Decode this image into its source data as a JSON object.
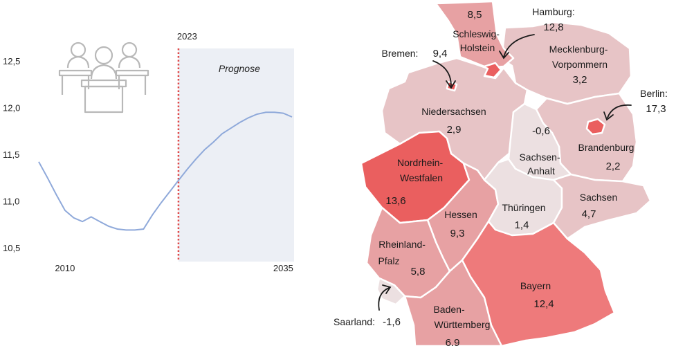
{
  "chart_data": [
    {
      "type": "line",
      "ylim": [
        10.5,
        12.5
      ],
      "yticks": [
        "10,5",
        "11,0",
        "11,5",
        "12,0",
        "12,5"
      ],
      "xtick_labels": [
        "2010",
        "2035"
      ],
      "marker": {
        "year": "2023",
        "label": "2023"
      },
      "forecast_label": "Prognose",
      "series": [
        {
          "x": [
            2007,
            2008,
            2009,
            2010,
            2011,
            2012,
            2013,
            2014,
            2015,
            2016,
            2017,
            2018,
            2019,
            2020,
            2021,
            2022,
            2023,
            2024,
            2025,
            2026,
            2027,
            2028,
            2029,
            2030,
            2031,
            2032,
            2033,
            2034,
            2035,
            2036
          ],
          "values": [
            11.42,
            11.25,
            11.07,
            10.9,
            10.82,
            10.78,
            10.83,
            10.78,
            10.73,
            10.7,
            10.69,
            10.69,
            10.7,
            10.85,
            10.98,
            11.1,
            11.22,
            11.34,
            11.45,
            11.55,
            11.63,
            11.72,
            11.78,
            11.84,
            11.89,
            11.93,
            11.95,
            11.95,
            11.94,
            11.9
          ]
        }
      ],
      "colors": {
        "line": "#8fa9da",
        "marker": "#e04848",
        "forecast_bg": "#eceff5"
      }
    },
    {
      "type": "map",
      "regions": [
        {
          "name": "Schleswig-Holstein",
          "label": "Schleswig-\nHolstein",
          "value": "8,5"
        },
        {
          "name": "Hamburg",
          "label": "Hamburg:",
          "value": "12,8"
        },
        {
          "name": "Bremen",
          "label": "Bremen:",
          "value": "9,4"
        },
        {
          "name": "Mecklenburg-Vorpommern",
          "label": "Mecklenburg-\nVorpommern",
          "value": "3,2"
        },
        {
          "name": "Niedersachsen",
          "label": "Niedersachsen",
          "value": "2,9"
        },
        {
          "name": "Berlin",
          "label": "Berlin:",
          "value": "17,3"
        },
        {
          "name": "Brandenburg",
          "label": "Brandenburg",
          "value": "2,2"
        },
        {
          "name": "Sachsen-Anhalt",
          "label": "Sachsen-\nAnhalt",
          "value": "-0,6"
        },
        {
          "name": "Nordrhein-Westfalen",
          "label": "Nordrhein-\nWestfalen",
          "value": "13,6"
        },
        {
          "name": "Hessen",
          "label": "Hessen",
          "value": "9,3"
        },
        {
          "name": "Thüringen",
          "label": "Thüringen",
          "value": "1,4"
        },
        {
          "name": "Sachsen",
          "label": "Sachsen",
          "value": "4,7"
        },
        {
          "name": "Rheinland-Pfalz",
          "label": "Rheinland-\nPfalz",
          "value": "5,8"
        },
        {
          "name": "Saarland",
          "label": "Saarland:",
          "value": "-1,6"
        },
        {
          "name": "Bayern",
          "label": "Bayern",
          "value": "12,4"
        },
        {
          "name": "Baden-Württemberg",
          "label": "Baden-\nWürttemberg",
          "value": "6,9"
        }
      ],
      "colors": {
        "low": "#ece0e1",
        "mid_low": "#e7c4c6",
        "mid": "#e7a1a3",
        "high": "#ee7a7b",
        "highest": "#ea5f5f",
        "border": "#ffffff"
      }
    }
  ]
}
